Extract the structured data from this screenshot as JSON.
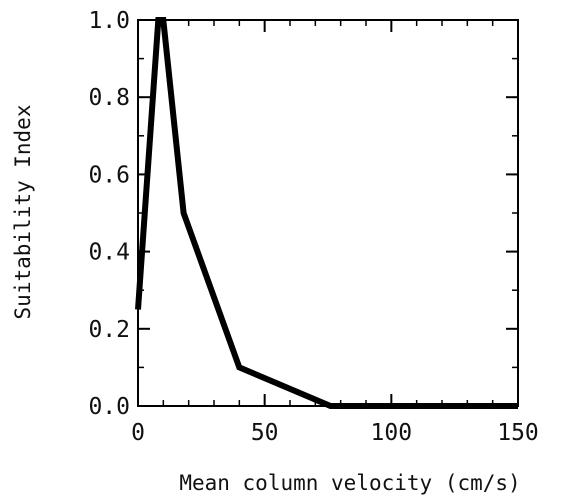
{
  "chart_data": {
    "type": "line",
    "title": "",
    "xlabel": "Mean column velocity (cm/s)",
    "ylabel": "Suitability Index",
    "xlim": [
      0,
      150
    ],
    "ylim": [
      0,
      1.0
    ],
    "x_ticks": [
      0,
      50,
      100,
      150
    ],
    "x_tick_labels": [
      "0",
      "50",
      "100",
      "150"
    ],
    "y_ticks": [
      0,
      0.2,
      0.4,
      0.6,
      0.8,
      1.0
    ],
    "y_tick_labels": [
      "0.0",
      "0.2",
      "0.4",
      "0.6",
      "0.8",
      "1.0"
    ],
    "grid": false,
    "legend": "none",
    "series": [
      {
        "x": [
          0,
          8,
          10,
          18,
          40,
          76,
          150
        ],
        "y": [
          0.25,
          1.0,
          1.0,
          0.5,
          0.1,
          0.0,
          0.0
        ],
        "color": "#000000"
      }
    ]
  }
}
